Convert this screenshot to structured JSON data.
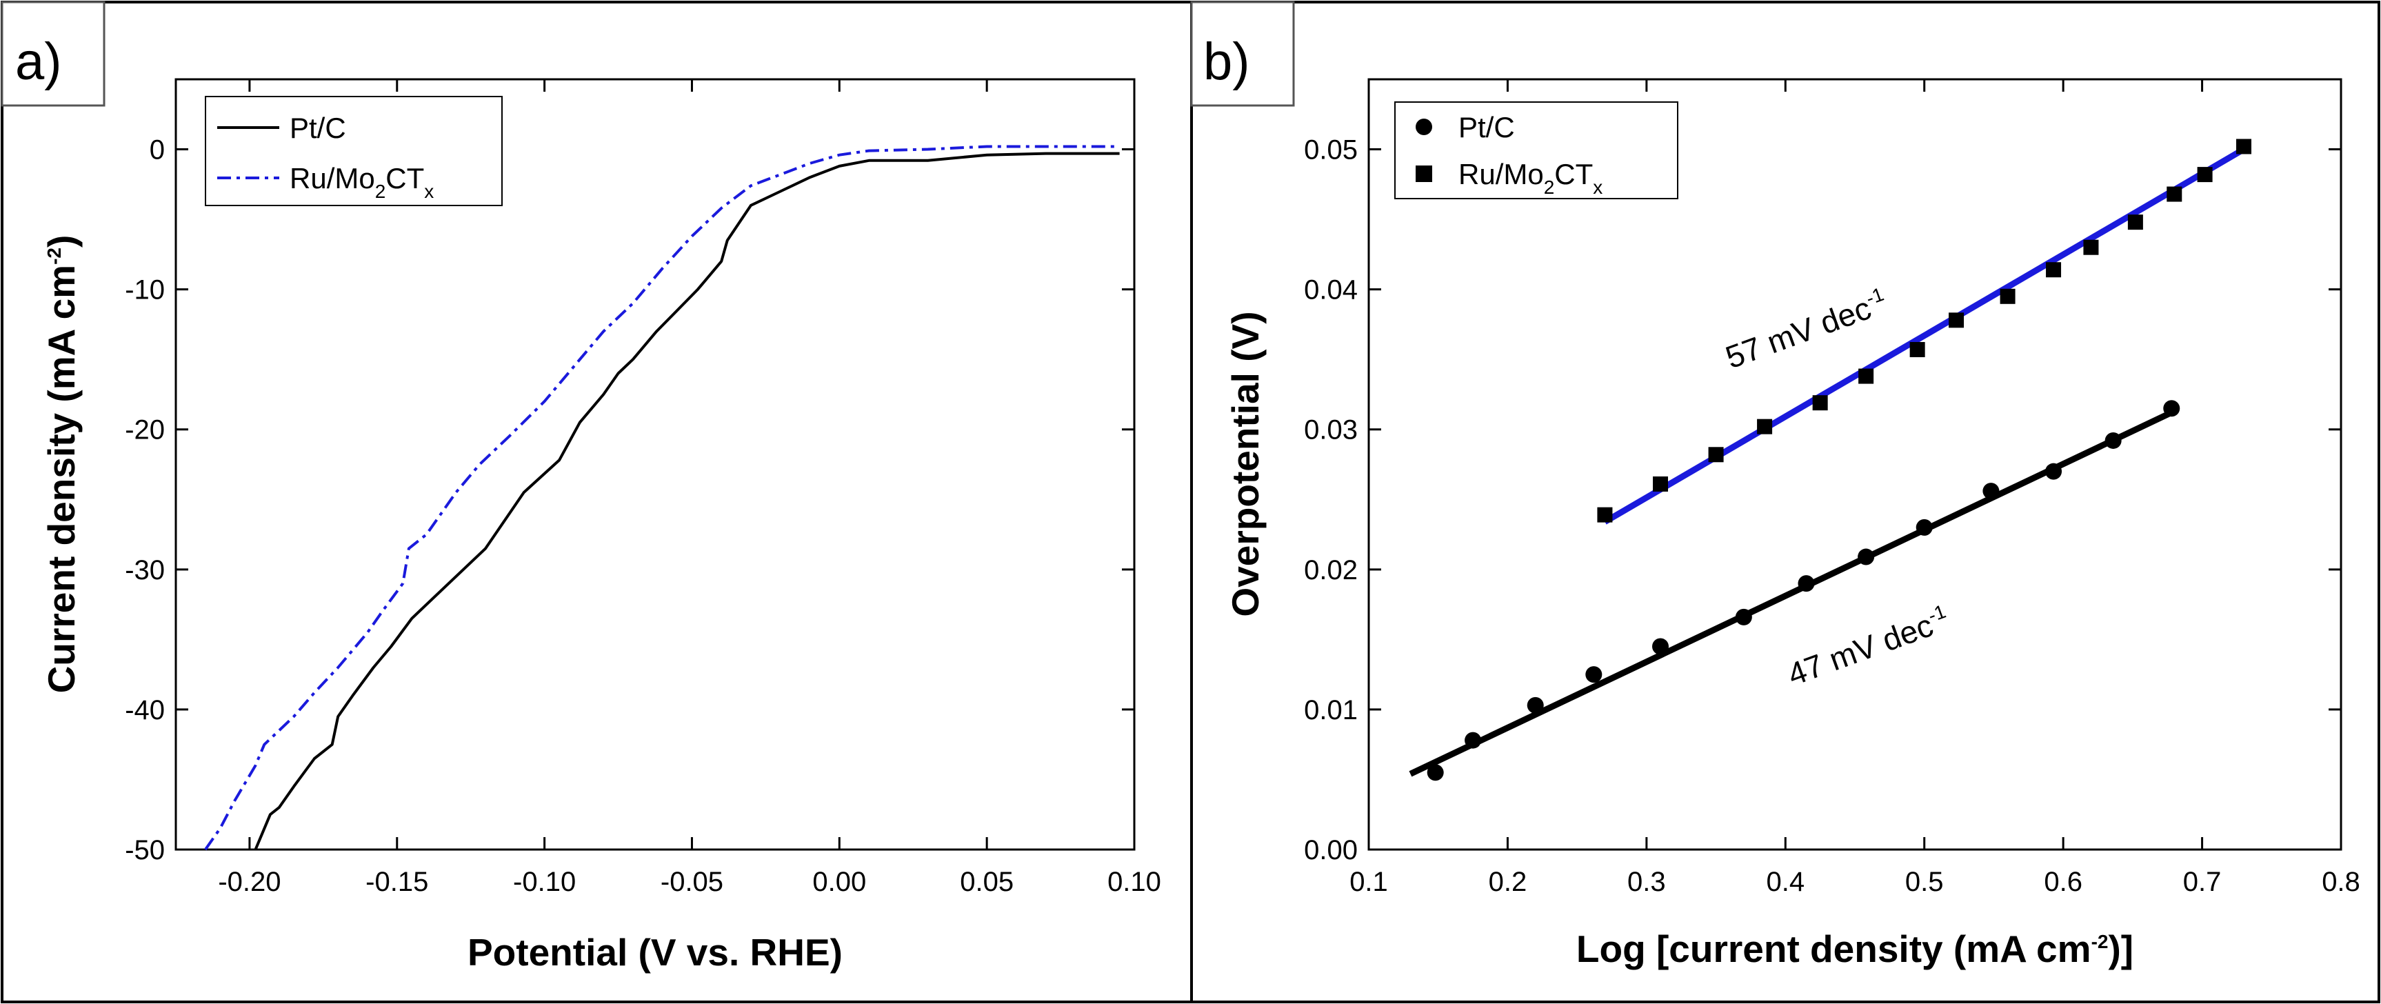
{
  "chart_data": [
    {
      "panel_label": "a)",
      "type": "line",
      "xlabel": "Potential (V vs. RHE)",
      "ylabel_main": "Current density (mA cm",
      "ylabel_sup": "-2",
      "ylabel_end": ")",
      "xlim": [
        -0.225,
        0.1
      ],
      "ylim": [
        -50,
        5
      ],
      "xticks": [
        -0.2,
        -0.15,
        -0.1,
        -0.05,
        0.0,
        0.05,
        0.1
      ],
      "xtick_labels": [
        "-0.20",
        "-0.15",
        "-0.10",
        "-0.05",
        "0.00",
        "0.05",
        "0.10"
      ],
      "yticks": [
        -50,
        -40,
        -30,
        -20,
        -10,
        0
      ],
      "ytick_labels": [
        "-50",
        "-40",
        "-30",
        "-20",
        "-10",
        "0"
      ],
      "legend_position": "top-left",
      "series": [
        {
          "name": "Pt/C",
          "legend_main": "Pt/C",
          "legend_sub": "",
          "legend_tail": "",
          "color": "#000000",
          "style": "solid",
          "x": [
            -0.198,
            -0.193,
            -0.19,
            -0.185,
            -0.178,
            -0.172,
            -0.17,
            -0.165,
            -0.158,
            -0.152,
            -0.145,
            -0.135,
            -0.12,
            -0.107,
            -0.095,
            -0.088,
            -0.08,
            -0.075,
            -0.07,
            -0.062,
            -0.055,
            -0.048,
            -0.04,
            -0.038,
            -0.03,
            -0.02,
            -0.01,
            0.0,
            0.01,
            0.03,
            0.05,
            0.07,
            0.095
          ],
          "y": [
            -50,
            -47.5,
            -47,
            -45.5,
            -43.5,
            -42.5,
            -40.5,
            -39,
            -37,
            -35.5,
            -33.5,
            -31.5,
            -28.5,
            -24.5,
            -22.2,
            -19.5,
            -17.5,
            -16,
            -15,
            -13,
            -11.5,
            -10,
            -8,
            -6.5,
            -4,
            -3,
            -2,
            -1.2,
            -0.8,
            -0.8,
            -0.4,
            -0.3,
            -0.3
          ]
        },
        {
          "name": "Ru/Mo2CTx",
          "legend_main": "Ru/Mo",
          "legend_sub": "2",
          "legend_tail": "CT",
          "legend_sub2": "x",
          "color": "#1a1adc",
          "style": "dashdot",
          "x": [
            -0.215,
            -0.21,
            -0.205,
            -0.198,
            -0.195,
            -0.185,
            -0.178,
            -0.17,
            -0.16,
            -0.155,
            -0.148,
            -0.146,
            -0.14,
            -0.13,
            -0.122,
            -0.112,
            -0.1,
            -0.09,
            -0.08,
            -0.07,
            -0.06,
            -0.05,
            -0.04,
            -0.03,
            -0.02,
            -0.01,
            0.0,
            0.01,
            0.03,
            0.05,
            0.07,
            0.095
          ],
          "y": [
            -50,
            -48.5,
            -46.5,
            -44,
            -42.5,
            -40.5,
            -38.8,
            -37,
            -34.5,
            -33,
            -31,
            -28.5,
            -27.5,
            -24.5,
            -22.5,
            -20.5,
            -18,
            -15.5,
            -13,
            -11,
            -8.5,
            -6.2,
            -4.2,
            -2.6,
            -1.8,
            -1,
            -0.4,
            -0.1,
            0.0,
            0.2,
            0.2,
            0.2
          ]
        }
      ]
    },
    {
      "panel_label": "b)",
      "type": "scatter",
      "xlabel_main": "Log [current density (mA cm",
      "xlabel_sup": "-2",
      "xlabel_end": ")]",
      "ylabel": "Overpotential (V)",
      "xlim": [
        0.1,
        0.8
      ],
      "ylim": [
        0.0,
        0.055
      ],
      "xticks": [
        0.1,
        0.2,
        0.3,
        0.4,
        0.5,
        0.6,
        0.7,
        0.8
      ],
      "xtick_labels": [
        "0.1",
        "0.2",
        "0.3",
        "0.4",
        "0.5",
        "0.6",
        "0.7",
        "0.8"
      ],
      "yticks": [
        0.0,
        0.01,
        0.02,
        0.03,
        0.04,
        0.05
      ],
      "ytick_labels": [
        "0.00",
        "0.01",
        "0.02",
        "0.03",
        "0.04",
        "0.05"
      ],
      "legend_position": "top-left",
      "series": [
        {
          "name": "Pt/C",
          "legend_main": "Pt/C",
          "legend_sub": "",
          "legend_tail": "",
          "marker": "circle",
          "color": "#000000",
          "fit_color": "#000000",
          "x": [
            0.148,
            0.175,
            0.22,
            0.262,
            0.31,
            0.37,
            0.415,
            0.458,
            0.5,
            0.548,
            0.593,
            0.636,
            0.678
          ],
          "y": [
            0.0055,
            0.0078,
            0.0103,
            0.0125,
            0.0145,
            0.0166,
            0.019,
            0.0209,
            0.023,
            0.0256,
            0.027,
            0.0292,
            0.0315
          ],
          "fit_x": [
            0.13,
            0.68
          ],
          "fit_y": [
            0.0054,
            0.0313
          ],
          "slope_label_main": "47 mV dec",
          "slope_label_sup": "-1"
        },
        {
          "name": "Ru/Mo2CTx",
          "legend_main": "Ru/Mo",
          "legend_sub": "2",
          "legend_tail": "CT",
          "legend_sub2": "x",
          "marker": "square",
          "color": "#000000",
          "fit_color": "#1a1adc",
          "x": [
            0.27,
            0.31,
            0.35,
            0.385,
            0.425,
            0.458,
            0.495,
            0.523,
            0.56,
            0.593,
            0.62,
            0.652,
            0.68,
            0.702,
            0.73
          ],
          "y": [
            0.0239,
            0.0261,
            0.0282,
            0.0302,
            0.0319,
            0.0338,
            0.0357,
            0.0378,
            0.0395,
            0.0414,
            0.043,
            0.0448,
            0.0468,
            0.0482,
            0.0502
          ],
          "fit_x": [
            0.27,
            0.73
          ],
          "fit_y": [
            0.0234,
            0.05
          ],
          "slope_label_main": "57 mV dec",
          "slope_label_sup": "-1"
        }
      ]
    }
  ]
}
